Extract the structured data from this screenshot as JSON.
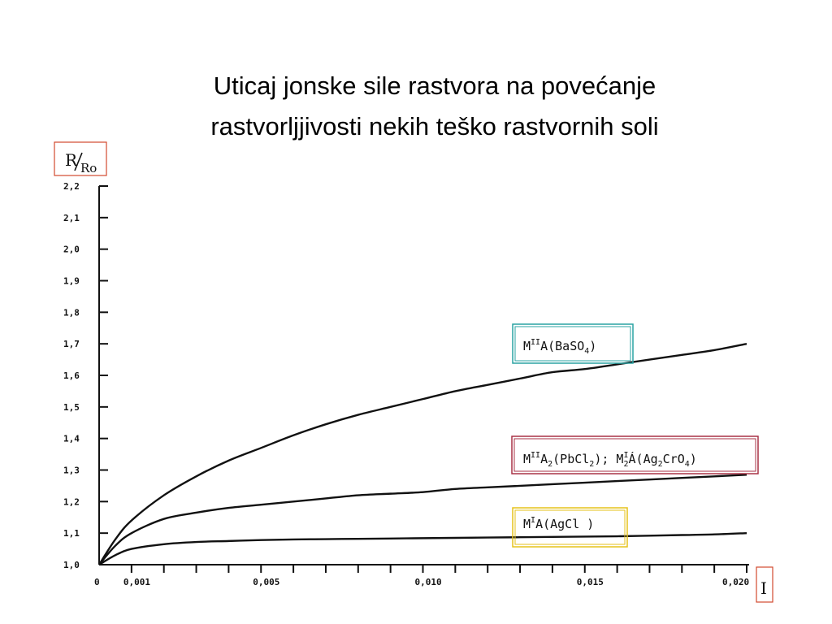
{
  "title_line1": "Uticaj jonske sile rastvora na povećanje",
  "title_line2": "rastvorljjivosti nekih teško rastvornih soli",
  "colors": {
    "baso4_box": "#2aa3a3",
    "pbcl2_box": "#a83246",
    "agcl_box": "#e6c21a",
    "axis_label_box": "#d24a2e"
  },
  "chart_data": {
    "type": "line",
    "title": "",
    "xlabel": "I",
    "ylabel": "R/Ro",
    "xlim": [
      0,
      0.02
    ],
    "ylim": [
      1.0,
      2.2
    ],
    "grid": false,
    "x_tick_labels": [
      {
        "value": 0,
        "label": "0"
      },
      {
        "value": 0.001,
        "label": "0,001"
      },
      {
        "value": 0.005,
        "label": "0,005"
      },
      {
        "value": 0.01,
        "label": "0,010"
      },
      {
        "value": 0.015,
        "label": "0,015"
      },
      {
        "value": 0.02,
        "label": "0,020"
      }
    ],
    "x_minor_ticks": [
      0.001,
      0.002,
      0.003,
      0.004,
      0.005,
      0.006,
      0.007,
      0.008,
      0.009,
      0.01,
      0.011,
      0.012,
      0.013,
      0.014,
      0.015,
      0.016,
      0.017,
      0.018,
      0.019,
      0.02
    ],
    "y_tick_labels": [
      {
        "value": 1.0,
        "label": "1,0"
      },
      {
        "value": 1.1,
        "label": "1,1"
      },
      {
        "value": 1.2,
        "label": "1,2"
      },
      {
        "value": 1.3,
        "label": "1,3"
      },
      {
        "value": 1.4,
        "label": "1,4"
      },
      {
        "value": 1.5,
        "label": "1,5"
      },
      {
        "value": 1.6,
        "label": "1,6"
      },
      {
        "value": 1.7,
        "label": "1,7"
      },
      {
        "value": 1.8,
        "label": "1,8"
      },
      {
        "value": 1.9,
        "label": "1,9"
      },
      {
        "value": 2.0,
        "label": "2,0"
      },
      {
        "value": 2.1,
        "label": "2,1"
      },
      {
        "value": 2.2,
        "label": "2,2"
      }
    ],
    "x": [
      0,
      0.0005,
      0.001,
      0.002,
      0.003,
      0.004,
      0.005,
      0.006,
      0.007,
      0.008,
      0.009,
      0.01,
      0.011,
      0.012,
      0.013,
      0.014,
      0.015,
      0.016,
      0.017,
      0.018,
      0.019,
      0.02
    ],
    "series": [
      {
        "name": "MIIA(BaSO4)",
        "values": [
          1.0,
          1.08,
          1.14,
          1.22,
          1.28,
          1.33,
          1.37,
          1.41,
          1.445,
          1.475,
          1.5,
          1.525,
          1.55,
          1.57,
          1.59,
          1.61,
          1.62,
          1.635,
          1.65,
          1.665,
          1.68,
          1.7
        ]
      },
      {
        "name": "MIIA2(PbCl2); M2IA(Ag2CrO4)",
        "values": [
          1.0,
          1.06,
          1.1,
          1.145,
          1.165,
          1.18,
          1.19,
          1.2,
          1.21,
          1.22,
          1.225,
          1.23,
          1.24,
          1.245,
          1.25,
          1.255,
          1.26,
          1.265,
          1.27,
          1.275,
          1.28,
          1.285
        ]
      },
      {
        "name": "MIA(AgCl)",
        "values": [
          1.0,
          1.03,
          1.05,
          1.065,
          1.072,
          1.075,
          1.078,
          1.08,
          1.081,
          1.082,
          1.083,
          1.084,
          1.085,
          1.086,
          1.087,
          1.088,
          1.089,
          1.09,
          1.092,
          1.094,
          1.096,
          1.1
        ]
      }
    ]
  }
}
